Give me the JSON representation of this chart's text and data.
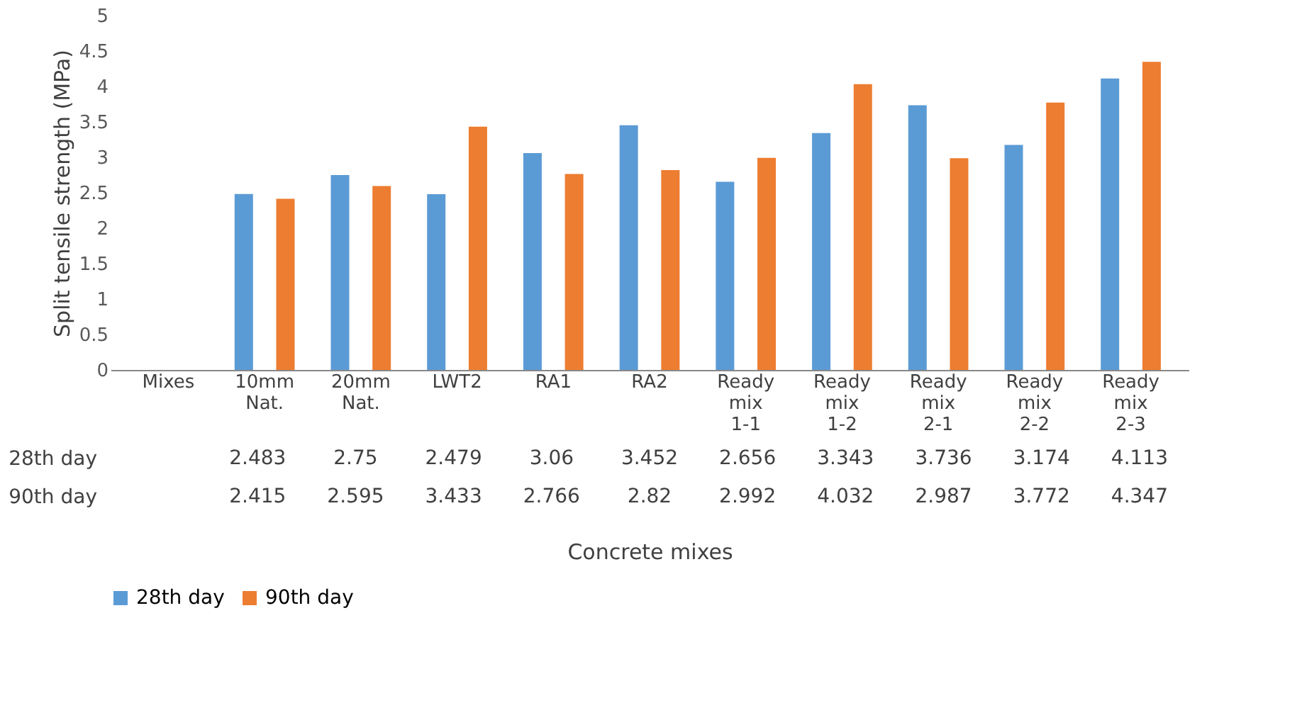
{
  "chart_data": {
    "type": "bar",
    "xlabel": "Concrete mixes",
    "ylabel": "Split tensile strength (MPa)",
    "categories": [
      "Mixes",
      "10mm Nat.",
      "20mm Nat.",
      "LWT2",
      "RA1",
      "RA2",
      "Ready mix 1-1",
      "Ready mix 1-2",
      "Ready mix 2-1",
      "Ready mix 2-2",
      "Ready mix 2-3"
    ],
    "series": [
      {
        "name": "28th day",
        "color": "#5b9bd5",
        "values": [
          null,
          2.483,
          2.75,
          2.479,
          3.06,
          3.452,
          2.656,
          3.343,
          3.736,
          3.174,
          4.113
        ]
      },
      {
        "name": "90th day",
        "color": "#ed7d31",
        "values": [
          null,
          2.415,
          2.595,
          3.433,
          2.766,
          2.82,
          2.992,
          4.032,
          2.987,
          3.772,
          4.347
        ]
      }
    ],
    "ylim": [
      0,
      5
    ],
    "yticks": [
      0,
      0.5,
      1,
      1.5,
      2,
      2.5,
      3,
      3.5,
      4,
      4.5,
      5
    ],
    "data_labels": true,
    "legend": "bottom",
    "grid": false
  }
}
